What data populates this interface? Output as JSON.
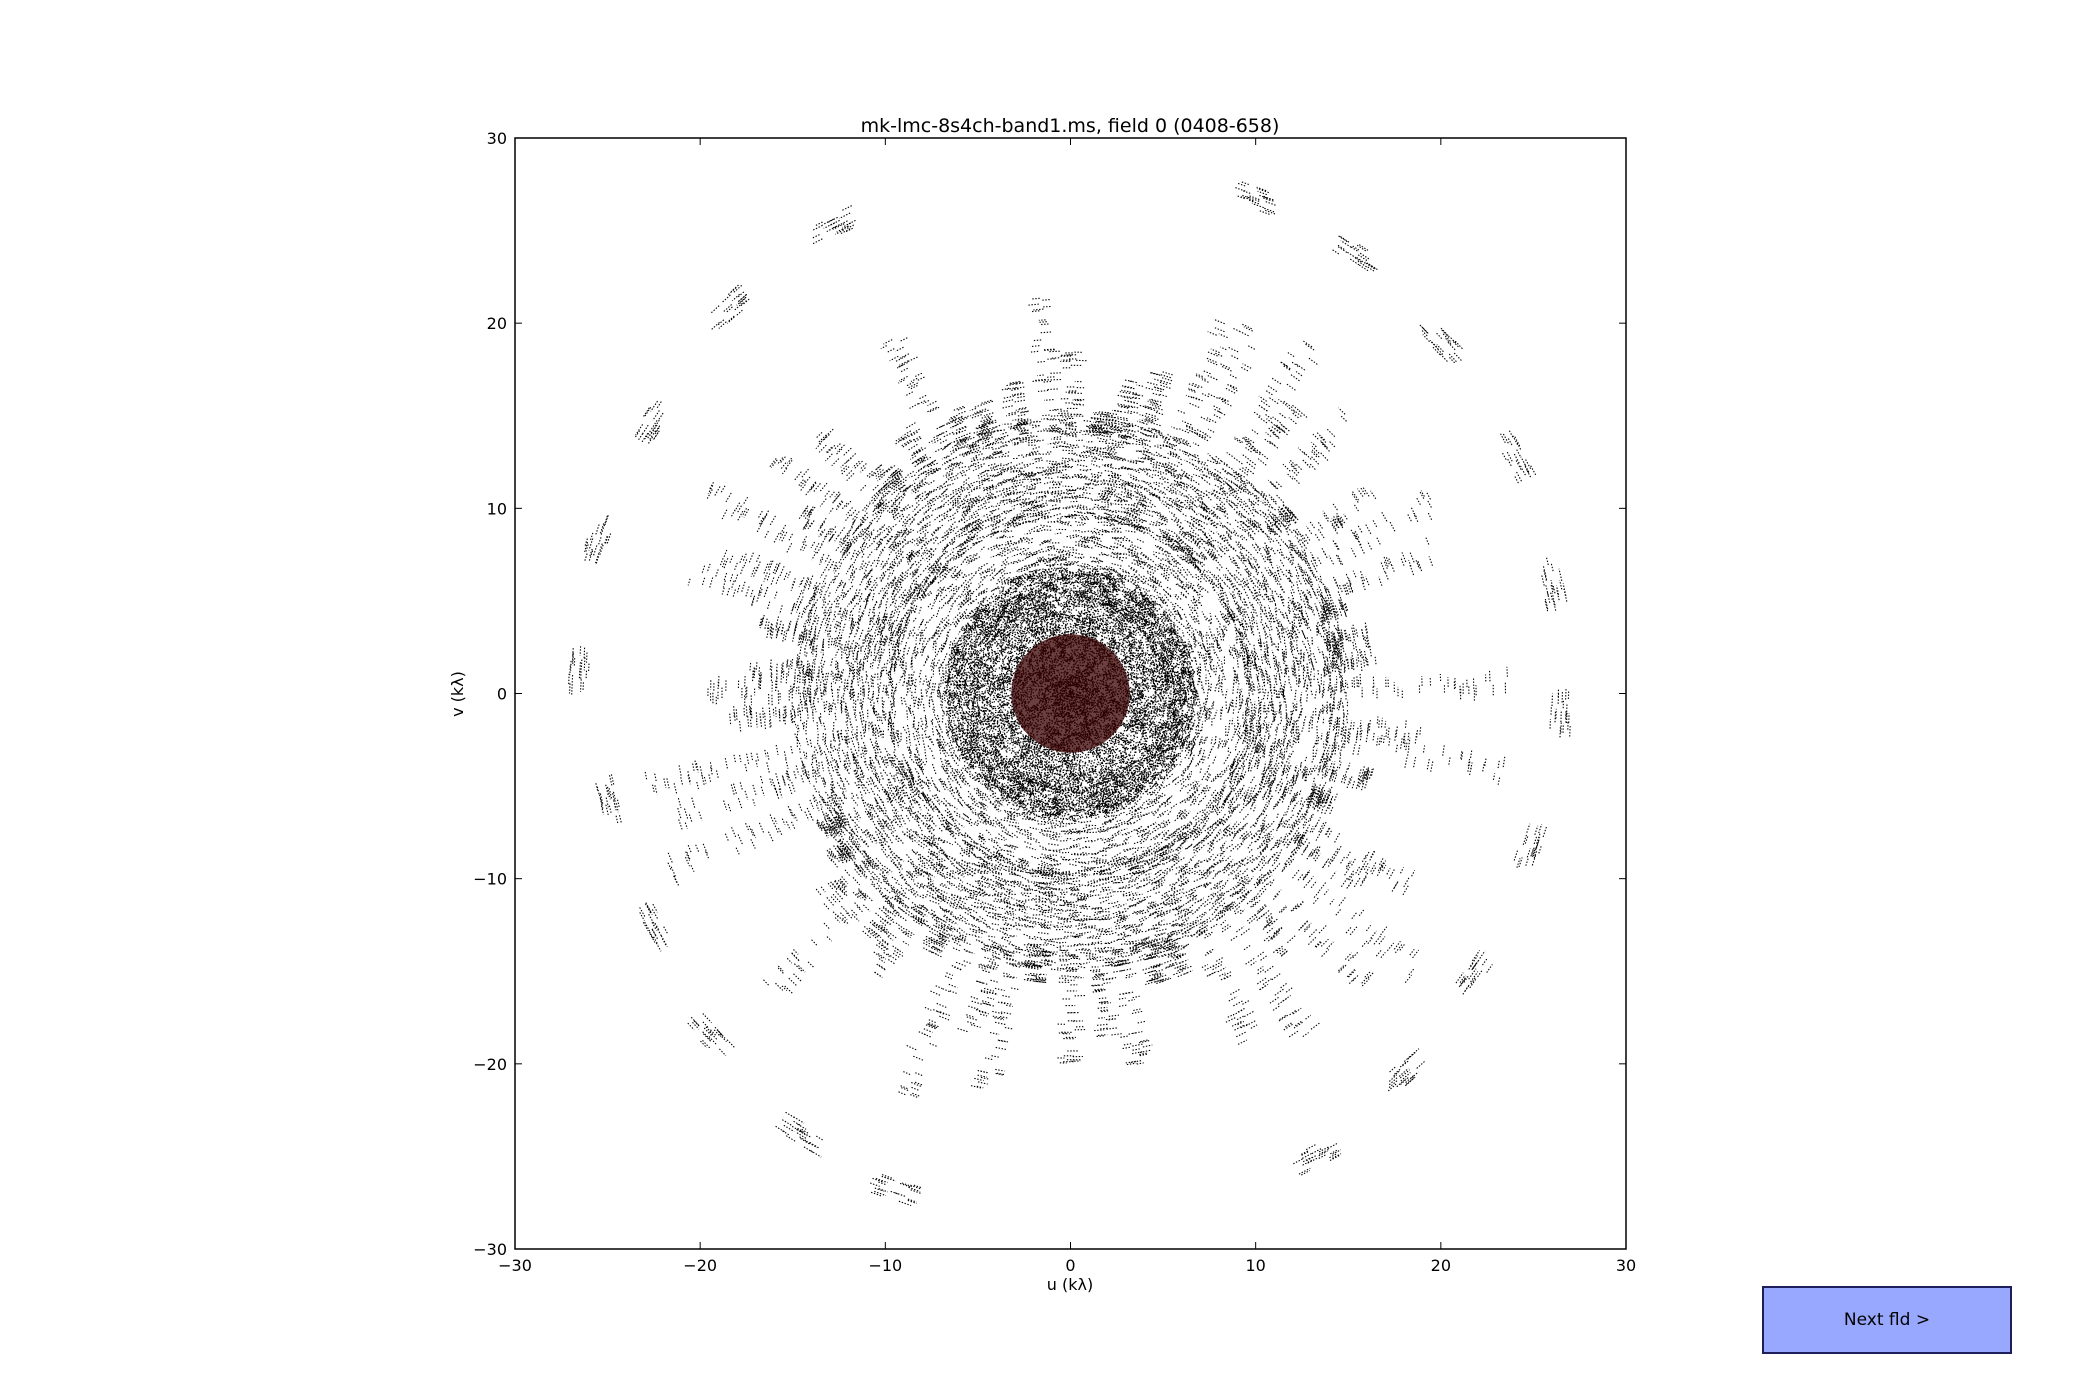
{
  "chart_data": {
    "type": "scatter",
    "title": "mk-lmc-8s4ch-band1.ms, field 0 (0408-658)",
    "xlabel": "u (kλ)",
    "ylabel": "v (kλ)",
    "xlim": [
      -30,
      30
    ],
    "ylim": [
      -30,
      30
    ],
    "xticks": [
      -30,
      -20,
      -10,
      0,
      10,
      20,
      30
    ],
    "yticks": [
      -30,
      -20,
      -10,
      0,
      10,
      20,
      30
    ],
    "xtick_labels": [
      "−30",
      "−20",
      "−10",
      "0",
      "10",
      "20",
      "30"
    ],
    "ytick_labels": [
      "−30",
      "−20",
      "−10",
      "0",
      "10",
      "20",
      "30"
    ],
    "grid": false,
    "aspect": "equal",
    "point_color": "#000000",
    "center_color": "#3a0000",
    "description_of_marks": "uv-coverage: radial tracks of short point segments, dense core within |uv| < 5, dense ring between 10 and 15, sparse spokes out to about 28",
    "dense_core_radius": 5,
    "dense_ring": [
      9.5,
      15
    ],
    "max_radius": 28,
    "outer_clusters": [
      {
        "u": -12.8,
        "v": 25.2
      },
      {
        "u": -18.5,
        "v": 20.8
      },
      {
        "u": -22.5,
        "v": 14.8
      },
      {
        "u": -25.5,
        "v": 8.3
      },
      {
        "u": -26.5,
        "v": 1.3
      },
      {
        "u": -25.0,
        "v": -5.8
      },
      {
        "u": -22.5,
        "v": -12.5
      },
      {
        "u": -19.5,
        "v": -18.5
      },
      {
        "u": -14.5,
        "v": -23.8
      },
      {
        "u": -9.5,
        "v": -26.8
      },
      {
        "u": 9.8,
        "v": 26.8
      },
      {
        "u": 15.5,
        "v": 23.6
      },
      {
        "u": 20.0,
        "v": 19.0
      },
      {
        "u": 24.0,
        "v": 12.8
      },
      {
        "u": 26.0,
        "v": 6.0
      },
      {
        "u": 26.5,
        "v": -1.0
      },
      {
        "u": 24.8,
        "v": -8.3
      },
      {
        "u": 21.8,
        "v": -15.0
      },
      {
        "u": 18.0,
        "v": -20.5
      },
      {
        "u": 13.2,
        "v": -25.0
      }
    ]
  },
  "button": {
    "label": "Next fld >",
    "color": "#99a8ff"
  }
}
